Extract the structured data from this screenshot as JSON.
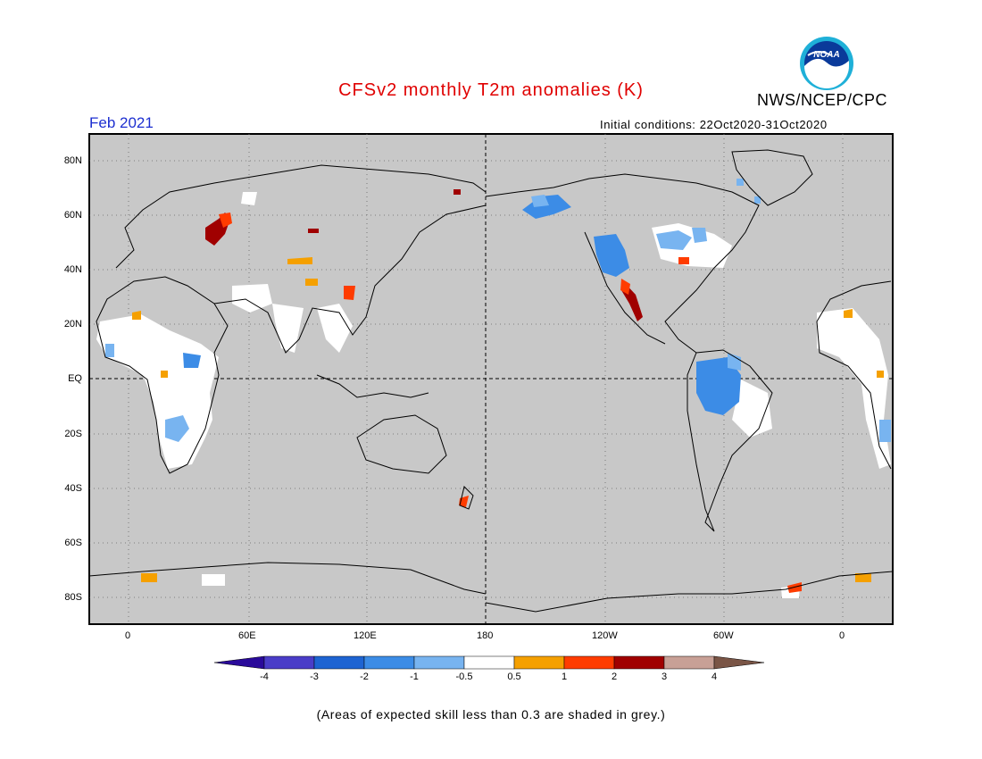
{
  "header": {
    "title": "CFSv2 monthly T2m anomalies (K)",
    "org": "NWS/NCEP/CPC",
    "logo_text": "NOAA",
    "month": "Feb 2021",
    "initial_conditions": "Initial conditions: 22Oct2020-31Oct2020"
  },
  "map": {
    "lat_labels": [
      "80N",
      "60N",
      "40N",
      "20N",
      "EQ",
      "20S",
      "40S",
      "60S",
      "80S"
    ],
    "lon_labels": [
      "0",
      "60E",
      "120E",
      "180",
      "120W",
      "60W",
      "0"
    ],
    "background_color": "#c8c8c8",
    "grid": "dotted",
    "reference_lines": [
      "EQ",
      "180"
    ]
  },
  "colorbar": {
    "labels": [
      "-4",
      "-3",
      "-2",
      "-1",
      "-0.5",
      "0.5",
      "1",
      "2",
      "3",
      "4"
    ],
    "colors": [
      "#2a0a9a",
      "#4a3dc8",
      "#1e64d2",
      "#3c8ce6",
      "#78b4f0",
      "#ffffff",
      "#f5a000",
      "#ff3c00",
      "#a00000",
      "#c8a096",
      "#7a5546"
    ]
  },
  "footnote": "(Areas of expected skill less than 0.3 are shaded in grey.)"
}
